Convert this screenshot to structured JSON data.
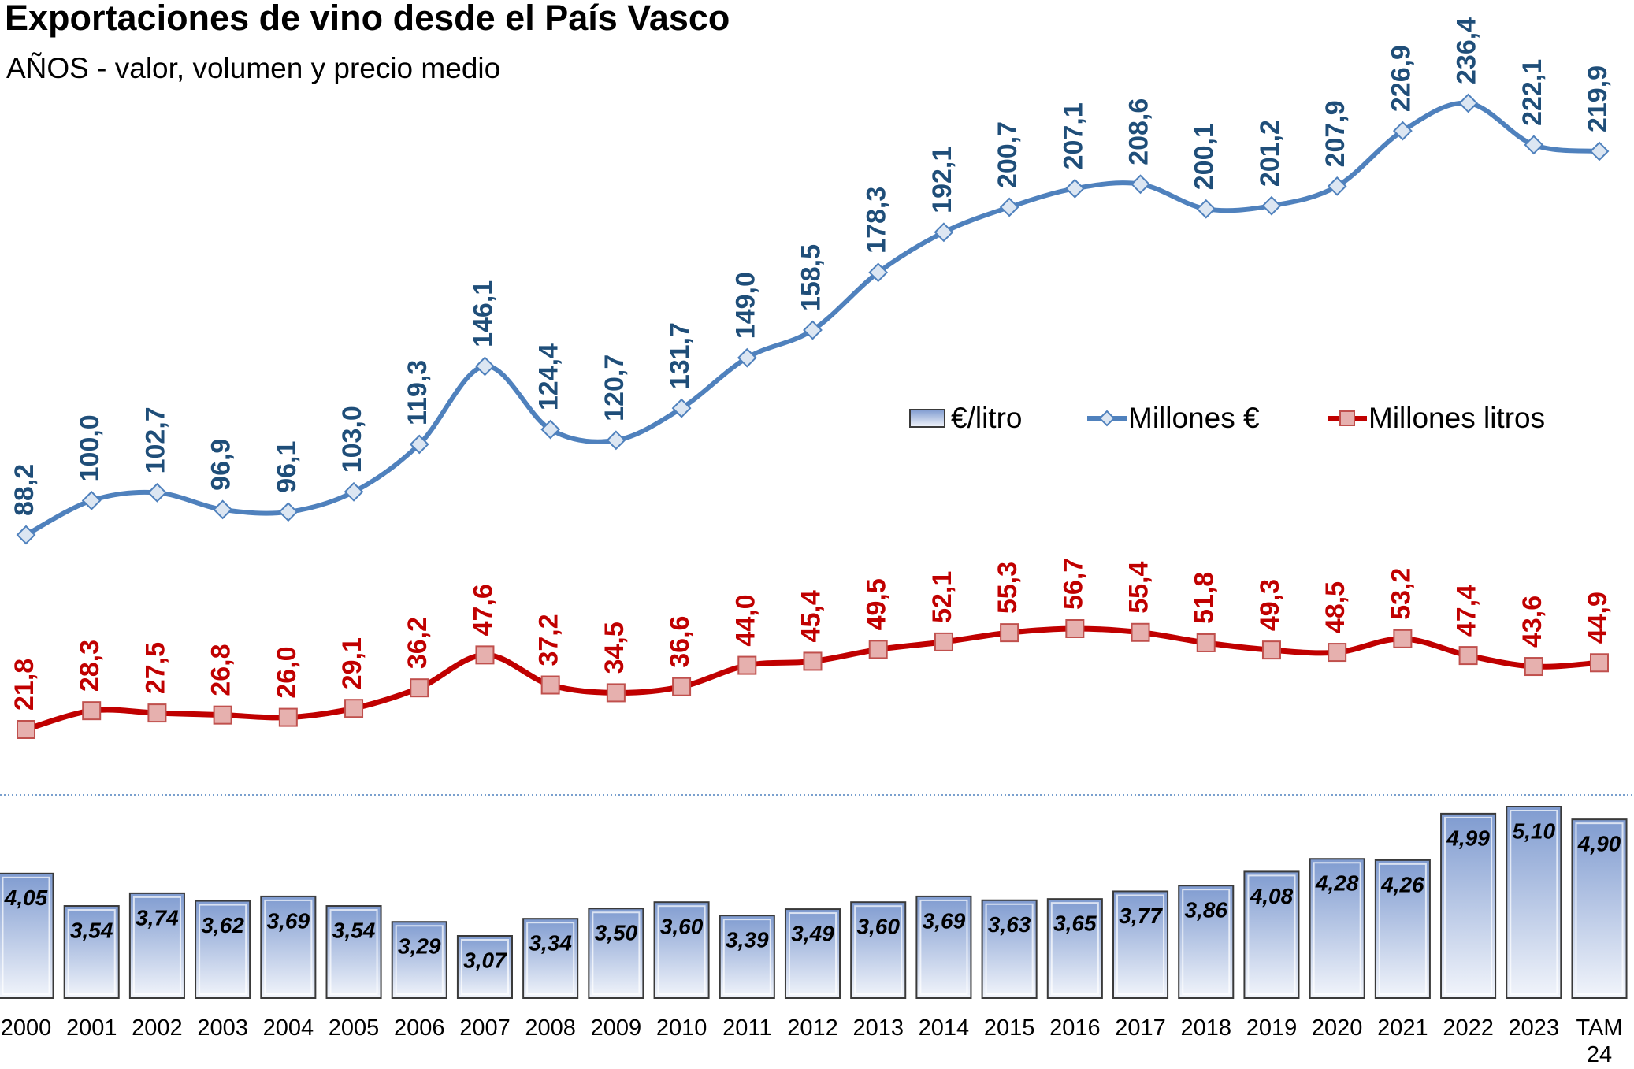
{
  "chart_data": {
    "type": "combo",
    "title": "Exportaciones de vino desde el País Vasco",
    "subtitle": "AÑOS - valor, volumen y precio medio",
    "categories": [
      "2000",
      "2001",
      "2002",
      "2003",
      "2004",
      "2005",
      "2006",
      "2007",
      "2008",
      "2009",
      "2010",
      "2011",
      "2012",
      "2013",
      "2014",
      "2015",
      "2016",
      "2017",
      "2018",
      "2019",
      "2020",
      "2021",
      "2022",
      "2023",
      "TAM 24"
    ],
    "series": [
      {
        "name": "€/litro",
        "type": "bar",
        "color": "#8eaadb",
        "values": [
          4.05,
          3.54,
          3.74,
          3.62,
          3.69,
          3.54,
          3.29,
          3.07,
          3.34,
          3.5,
          3.6,
          3.39,
          3.49,
          3.6,
          3.69,
          3.63,
          3.65,
          3.77,
          3.86,
          4.08,
          4.28,
          4.26,
          4.99,
          5.1,
          4.9
        ],
        "value_labels": [
          "4,05",
          "3,54",
          "3,74",
          "3,62",
          "3,69",
          "3,54",
          "3,29",
          "3,07",
          "3,34",
          "3,50",
          "3,60",
          "3,39",
          "3,49",
          "3,60",
          "3,69",
          "3,63",
          "3,65",
          "3,77",
          "3,86",
          "4,08",
          "4,28",
          "4,26",
          "4,99",
          "5,10",
          "4,90"
        ]
      },
      {
        "name": "Millones €",
        "type": "line",
        "color": "#4f81bd",
        "values": [
          88.2,
          100.0,
          102.7,
          96.9,
          96.1,
          103.0,
          119.3,
          146.1,
          124.4,
          120.7,
          131.7,
          149.0,
          158.5,
          178.3,
          192.1,
          200.7,
          207.1,
          208.6,
          200.1,
          201.2,
          207.9,
          226.9,
          236.4,
          222.1,
          219.9
        ],
        "value_labels": [
          "88,2",
          "100,0",
          "102,7",
          "96,9",
          "96,1",
          "103,0",
          "119,3",
          "146,1",
          "124,4",
          "120,7",
          "131,7",
          "149,0",
          "158,5",
          "178,3",
          "192,1",
          "200,7",
          "207,1",
          "208,6",
          "200,1",
          "201,2",
          "207,9",
          "226,9",
          "236,4",
          "222,1",
          "219,9"
        ]
      },
      {
        "name": "Millones litros",
        "type": "line",
        "color": "#c00000",
        "values": [
          21.8,
          28.3,
          27.5,
          26.8,
          26.0,
          29.1,
          36.2,
          47.6,
          37.2,
          34.5,
          36.6,
          44.0,
          45.4,
          49.5,
          52.1,
          55.3,
          56.7,
          55.4,
          51.8,
          49.3,
          48.5,
          53.2,
          47.4,
          43.6,
          44.9
        ],
        "value_labels": [
          "21,8",
          "28,3",
          "27,5",
          "26,8",
          "26,0",
          "29,1",
          "36,2",
          "47,6",
          "37,2",
          "34,5",
          "36,6",
          "44,0",
          "45,4",
          "49,5",
          "52,1",
          "55,3",
          "56,7",
          "55,4",
          "51,8",
          "49,3",
          "48,5",
          "53,2",
          "47,4",
          "43,6",
          "44,9"
        ]
      }
    ]
  }
}
